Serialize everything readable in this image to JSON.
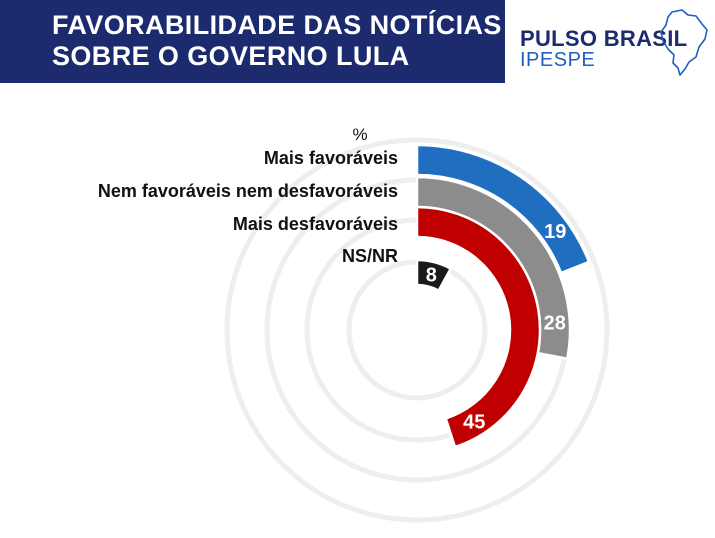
{
  "header": {
    "title_line1": "FAVORABILIDADE DAS NOTÍCIAS",
    "title_line2": "SOBRE O GOVERNO LULA"
  },
  "brand": {
    "name": "PULSO BRASIL",
    "sub": "IPESPE"
  },
  "chart_data": {
    "type": "radial-bar",
    "unit_label": "%",
    "categories": [
      "Mais favoráveis",
      "Nem favoráveis nem desfavoráveis",
      "Mais desfavoráveis",
      "NS/NR"
    ],
    "values": [
      19,
      28,
      45,
      8
    ],
    "colors": [
      "#1f6ec0",
      "#8c8c8c",
      "#c00000",
      "#1a1a1a"
    ],
    "max": 100
  }
}
